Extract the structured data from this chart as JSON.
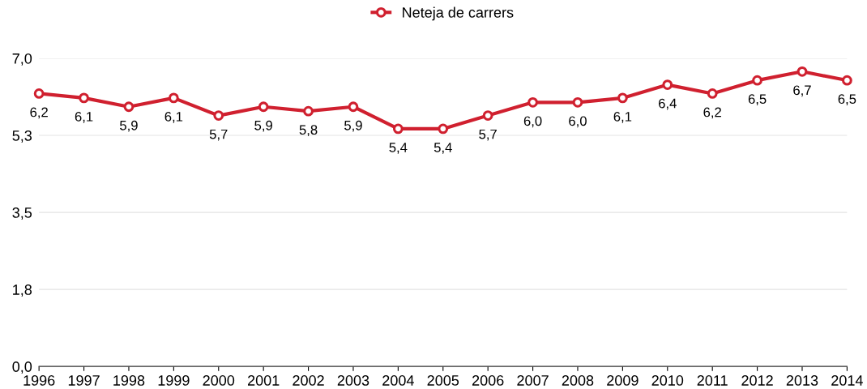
{
  "chart_data": {
    "type": "line",
    "categories": [
      "1996",
      "1997",
      "1998",
      "1999",
      "2000",
      "2001",
      "2002",
      "2003",
      "2004",
      "2005",
      "2006",
      "2007",
      "2008",
      "2009",
      "2010",
      "2011",
      "2012",
      "2013",
      "2014"
    ],
    "series": [
      {
        "name": "Neteja de carrers",
        "color": "#d0202f",
        "values": [
          6.2,
          6.1,
          5.9,
          6.1,
          5.7,
          5.9,
          5.8,
          5.9,
          5.4,
          5.4,
          5.7,
          6.0,
          6.0,
          6.1,
          6.4,
          6.2,
          6.5,
          6.7,
          6.5
        ],
        "value_labels": [
          "6,2",
          "6,1",
          "5,9",
          "6,1",
          "5,7",
          "5,9",
          "5,8",
          "5,9",
          "5,4",
          "5,4",
          "5,7",
          "6,0",
          "6,0",
          "6,1",
          "6,4",
          "6,2",
          "6,5",
          "6,7",
          "6,5"
        ]
      }
    ],
    "ylim": [
      0,
      7
    ],
    "yticks": [
      {
        "value": 0,
        "label": "0,0"
      },
      {
        "value": 1.75,
        "label": "1,8"
      },
      {
        "value": 3.5,
        "label": "3,5"
      },
      {
        "value": 5.25,
        "label": "5,3"
      },
      {
        "value": 7,
        "label": "7,0"
      }
    ],
    "grid": "y",
    "legend": "top",
    "marker": "circle",
    "line_style": "solid"
  }
}
